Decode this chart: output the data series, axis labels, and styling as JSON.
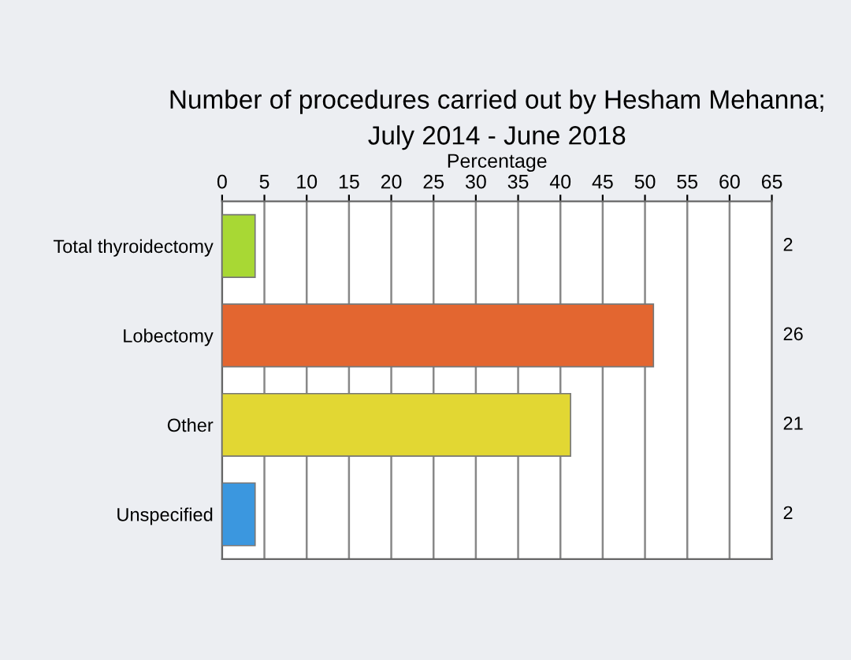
{
  "chart_data": {
    "type": "bar",
    "orientation": "horizontal",
    "title": "Number of procedures carried out by Hesham Mehanna;\nJuly 2014 - June 2018",
    "xlabel": "Percentage",
    "categories": [
      "Total thyroidectomy",
      "Lobectomy",
      "Other",
      "Unspecified"
    ],
    "values": [
      3.9,
      51,
      41.2,
      3.9
    ],
    "colors": [
      "#a8d834",
      "#e36630",
      "#e2d733",
      "#3b97df"
    ],
    "annotations": [
      "2",
      "26",
      "21",
      "2"
    ],
    "xlim": [
      0,
      65
    ],
    "xticks": [
      0,
      5,
      10,
      15,
      20,
      25,
      30,
      35,
      40,
      45,
      50,
      55,
      60,
      65
    ],
    "grid": "x"
  }
}
